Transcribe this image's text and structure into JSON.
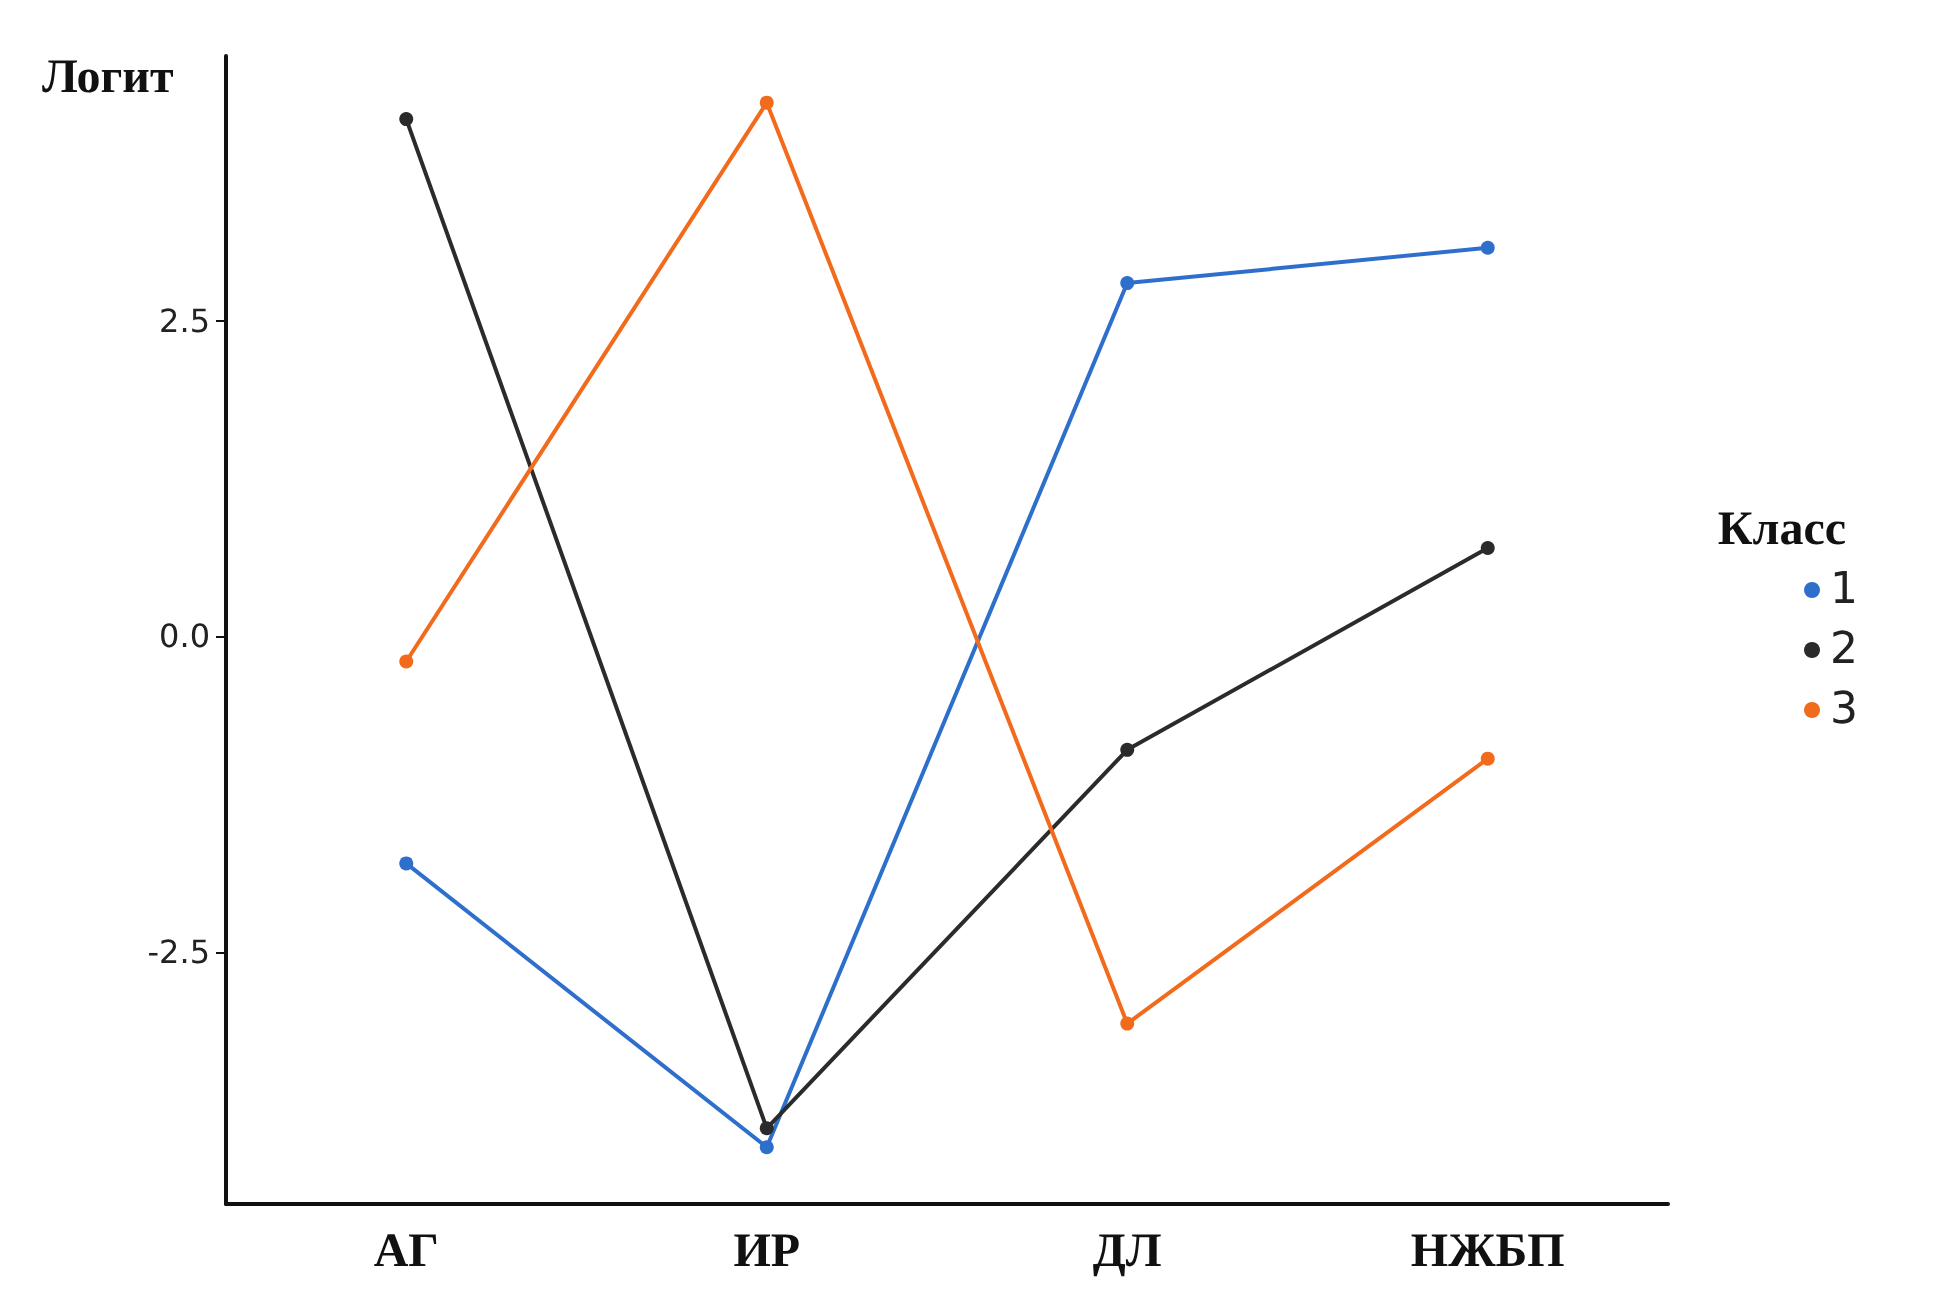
{
  "chart_data": {
    "type": "line",
    "ylabel": "Логит",
    "legend_title": "Класс",
    "categories": [
      "АГ",
      "ИР",
      "ДЛ",
      "НЖБП"
    ],
    "series": [
      {
        "name": "1",
        "color": "#2e6fcc",
        "values": [
          -1.8,
          -4.05,
          2.8,
          3.08
        ]
      },
      {
        "name": "2",
        "color": "#2b2b2b",
        "values": [
          4.1,
          -3.9,
          -0.9,
          0.7
        ]
      },
      {
        "name": "3",
        "color": "#f26b1d",
        "values": [
          -0.2,
          4.23,
          -3.07,
          -0.97
        ]
      }
    ],
    "ylim": [
      -4.5,
      4.6
    ],
    "yticks": [
      -2.5,
      {
        "value": 0,
        "label": "0.0"
      },
      2.5
    ],
    "grid": false,
    "legend": "right",
    "marker": "circle",
    "line_style": "solid"
  }
}
